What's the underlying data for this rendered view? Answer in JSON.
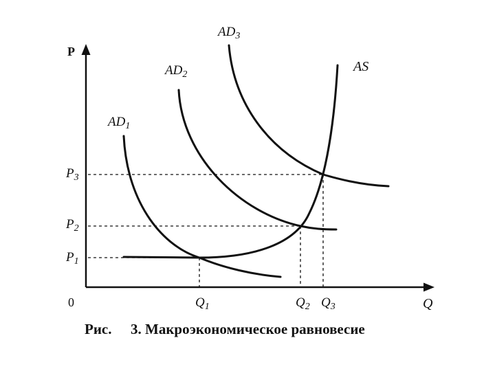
{
  "axes": {
    "y_label": "P",
    "x_label": "Q",
    "origin_label": "0"
  },
  "price_levels": [
    {
      "label": "P",
      "sub": "3"
    },
    {
      "label": "P",
      "sub": "2"
    },
    {
      "label": "P",
      "sub": "1"
    }
  ],
  "quantity_levels": [
    {
      "label": "Q",
      "sub": "1"
    },
    {
      "label": "Q",
      "sub": "2"
    },
    {
      "label": "Q",
      "sub": "3"
    }
  ],
  "curves": {
    "ad1": {
      "label": "AD",
      "sub": "1"
    },
    "ad2": {
      "label": "AD",
      "sub": "2"
    },
    "ad3": {
      "label": "AD",
      "sub": "3"
    },
    "as": {
      "label": "AS"
    }
  },
  "caption": {
    "prefix": "Рис.",
    "text": "3. Макроэкономическое равновесие"
  }
}
